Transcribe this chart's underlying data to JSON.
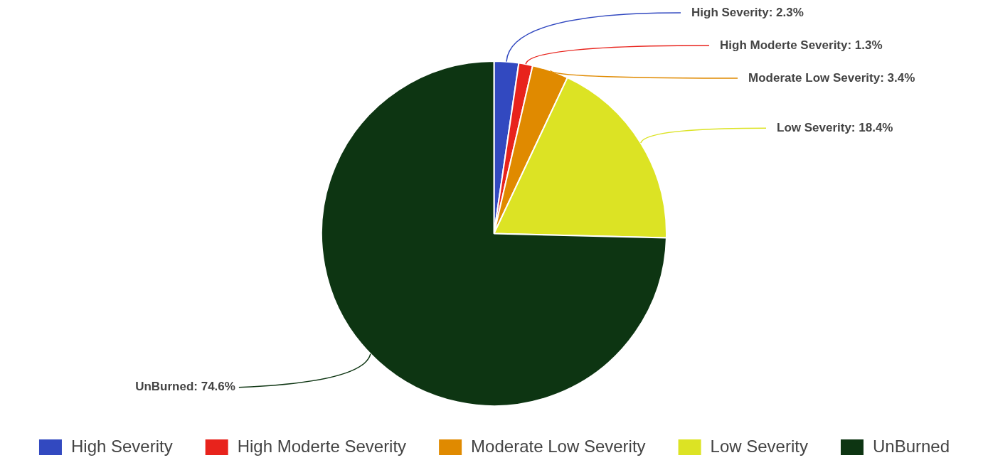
{
  "chart_data": {
    "type": "pie",
    "categories": [
      "High Severity",
      "High Moderte Severity",
      "Moderate Low Severity",
      "Low Severity",
      "UnBurned"
    ],
    "values": [
      2.3,
      1.3,
      3.4,
      18.4,
      74.6
    ],
    "value_labels": [
      "High Severity: 2.3%",
      "High Moderte Severity: 1.3%",
      "Moderate Low Severity: 3.4%",
      "Low Severity: 18.4%",
      "UnBurned: 74.6%"
    ],
    "colors": [
      "#3249c0",
      "#e8231c",
      "#e08a00",
      "#dce324",
      "#0d3512"
    ],
    "legend": "bottom"
  }
}
